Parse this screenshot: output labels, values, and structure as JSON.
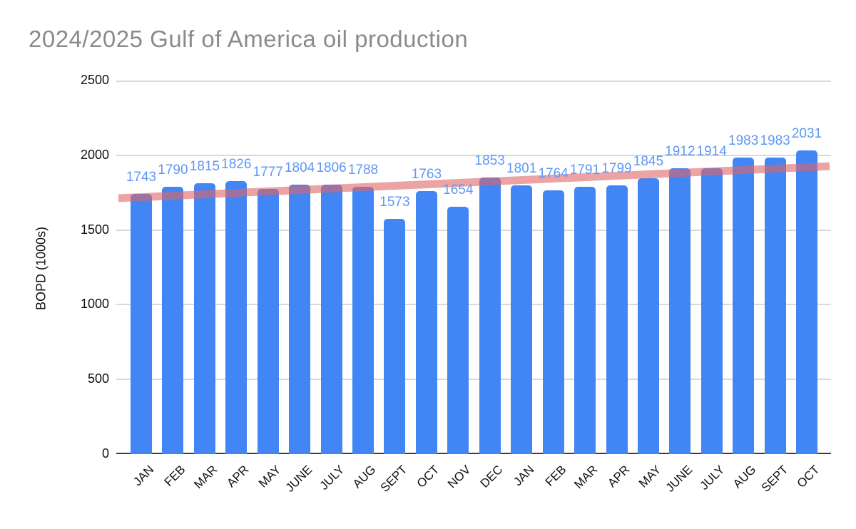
{
  "title": "2024/2025 Gulf of America oil production",
  "chart_data": {
    "type": "bar",
    "title": "2024/2025 Gulf of America oil production",
    "xlabel": "",
    "ylabel": "BOPD (1000s)",
    "ylim": [
      0,
      2500
    ],
    "yticks": [
      0,
      500,
      1000,
      1500,
      2000,
      2500
    ],
    "grid": true,
    "legend_position": "none",
    "categories": [
      "JAN",
      "FEB",
      "MAR",
      "APR",
      "MAY",
      "JUNE",
      "JULY",
      "AUG",
      "SEPT",
      "OCT",
      "NOV",
      "DEC",
      "JAN",
      "FEB",
      "MAR",
      "APR",
      "MAY",
      "JUNE",
      "JULY",
      "AUG",
      "SEPT",
      "OCT"
    ],
    "values": [
      1743,
      1790,
      1815,
      1826,
      1777,
      1804,
      1806,
      1788,
      1573,
      1763,
      1654,
      1853,
      1801,
      1764,
      1791,
      1799,
      1845,
      1912,
      1914,
      1983,
      1983,
      2031
    ],
    "data_labels_visible": true,
    "colors": {
      "bar": "#4285F4",
      "data_label": "#5E97F6",
      "trendline": "#E06666",
      "trendline_opacity": 0.6,
      "gridline": "#D9D9D9",
      "axis_text": "#111111",
      "title_text": "#8B8B8B"
    },
    "trendline": {
      "type": "linear",
      "start_value": 1713,
      "end_value": 1927
    }
  }
}
